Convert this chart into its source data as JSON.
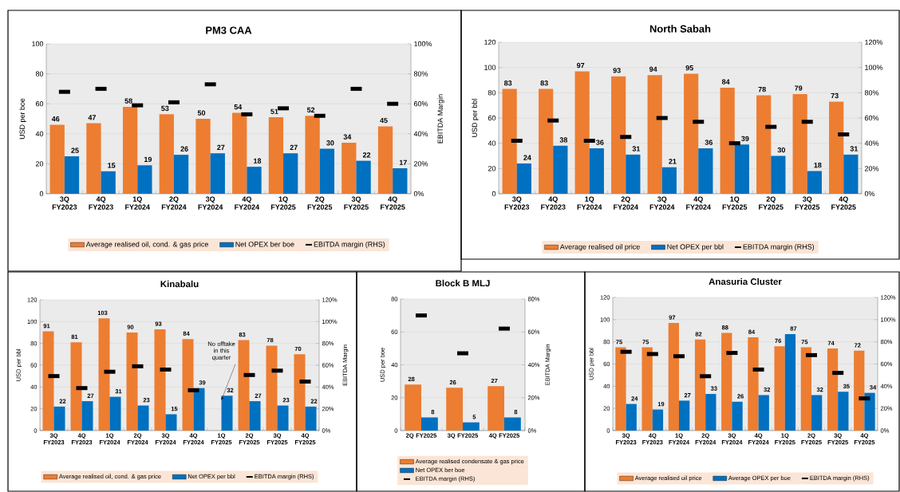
{
  "chart_data": [
    {
      "type": "bar",
      "title": "PM3 CAA",
      "ylabel": "USD per boe",
      "y2label": "EBITDA Margin",
      "categories": [
        "3Q FY2023",
        "4Q FY2023",
        "1Q FY2024",
        "2Q FY2024",
        "3Q FY2024",
        "4Q FY2024",
        "1Q FY2025",
        "2Q FY2025",
        "3Q FY2025",
        "4Q FY2025"
      ],
      "series": [
        {
          "name": "Average realised oil, cond. & gas price",
          "color": "#ed7d31",
          "values": [
            46,
            47,
            58,
            53,
            50,
            54,
            51,
            52,
            34,
            45
          ],
          "value_labels": [
            "46",
            "47",
            "58",
            "53",
            "50",
            "54",
            "51",
            "52",
            "34",
            "45"
          ]
        },
        {
          "name": "Net OPEX ber boe",
          "color": "#0070c0",
          "values": [
            25,
            15,
            19,
            26,
            27,
            18,
            27,
            30,
            22,
            17
          ],
          "value_labels": [
            "25",
            "15",
            "19",
            "26",
            "27",
            "18",
            "27",
            "30",
            "22",
            "17"
          ]
        },
        {
          "name": "EBITDA margin (RHS)",
          "type": "scatter",
          "axis": "y2",
          "color": "#000000",
          "values": [
            68,
            70,
            59,
            61,
            73,
            53,
            57,
            52,
            70,
            60
          ]
        }
      ],
      "ylim": [
        0,
        100
      ],
      "yticks": [
        0,
        20,
        40,
        60,
        80,
        100
      ],
      "y2lim": [
        0,
        100
      ],
      "y2ticks": [
        {
          "value": 0,
          "label": "0%"
        },
        {
          "value": 20,
          "label": "20%"
        },
        {
          "value": 40,
          "label": "40%"
        },
        {
          "value": 60,
          "label": "60%"
        },
        {
          "value": 80,
          "label": "80%"
        },
        {
          "value": 100,
          "label": "100%"
        }
      ],
      "grid": "y",
      "legend": "bottom"
    },
    {
      "type": "bar",
      "title": "North Sabah",
      "ylabel": "USD per bbl",
      "categories": [
        "3Q FY2023",
        "4Q FY2023",
        "1Q FY2024",
        "2Q FY2024",
        "3Q FY2024",
        "4Q FY2024",
        "1Q FY2025",
        "2Q FY2025",
        "3Q FY2025",
        "4Q FY2025"
      ],
      "series": [
        {
          "name": "Average realised oil price",
          "color": "#ed7d31",
          "values": [
            83,
            83,
            97,
            93,
            94,
            95,
            84,
            78,
            79,
            73
          ],
          "value_labels": [
            "83",
            "83",
            "97",
            "93",
            "94",
            "95",
            "84",
            "78",
            "79",
            "73"
          ]
        },
        {
          "name": "Net OPEX per bbl",
          "color": "#0070c0",
          "values": [
            24,
            38,
            36,
            31,
            21,
            36,
            39,
            30,
            18,
            31
          ],
          "value_labels": [
            "24",
            "38",
            "36",
            "31",
            "21",
            "36",
            "39",
            "30",
            "18",
            "31"
          ]
        },
        {
          "name": "EBITDA margin (RHS)",
          "type": "scatter",
          "axis": "y2",
          "color": "#000000",
          "values": [
            42,
            58,
            42,
            45,
            60,
            57,
            40,
            53,
            57,
            47
          ]
        }
      ],
      "ylim": [
        0,
        120
      ],
      "yticks": [
        0,
        20,
        40,
        60,
        80,
        100,
        120
      ],
      "y2lim": [
        0,
        120
      ],
      "y2ticks": [
        {
          "value": 0,
          "label": "0%"
        },
        {
          "value": 20,
          "label": "20%"
        },
        {
          "value": 40,
          "label": "40%"
        },
        {
          "value": 60,
          "label": "60%"
        },
        {
          "value": 80,
          "label": "80%"
        },
        {
          "value": 100,
          "label": "100%"
        },
        {
          "value": 120,
          "label": "120%"
        }
      ],
      "grid": "y",
      "legend": "bottom"
    },
    {
      "type": "bar",
      "title": "Kinabalu",
      "ylabel": "USD per bbl",
      "y2label": "EBITDA Margin",
      "categories": [
        "3Q FY2023",
        "4Q FY2023",
        "1Q FY2024",
        "2Q FY2024",
        "3Q FY2024",
        "4Q FY2024",
        "1Q FY2025",
        "2Q FY2025",
        "3Q FY2025",
        "4Q FY2025"
      ],
      "series": [
        {
          "name": "Average realised oil, cond. & gas price",
          "color": "#ed7d31",
          "values": [
            91,
            81,
            103,
            90,
            93,
            84,
            null,
            83,
            78,
            70
          ],
          "value_labels": [
            "91",
            "81",
            "103",
            "90",
            "93",
            "84",
            null,
            "83",
            "78",
            "70"
          ]
        },
        {
          "name": "Net OPEX per bbl",
          "color": "#0070c0",
          "values": [
            22,
            27,
            31,
            23,
            15,
            39,
            32,
            27,
            23,
            22
          ],
          "value_labels": [
            "22",
            "27",
            "31",
            "23",
            "15",
            "39",
            "32",
            "27",
            "23",
            "22"
          ]
        },
        {
          "name": "EBITDA margin (RHS)",
          "type": "scatter",
          "axis": "y2",
          "color": "#000000",
          "values": [
            50,
            39,
            54,
            59,
            56,
            37,
            null,
            51,
            55,
            45
          ]
        }
      ],
      "ylim": [
        0,
        120
      ],
      "yticks": [
        0,
        20,
        40,
        60,
        80,
        100,
        120
      ],
      "y2lim": [
        0,
        120
      ],
      "y2ticks": [
        {
          "value": 0,
          "label": "0%"
        },
        {
          "value": 20,
          "label": "20%"
        },
        {
          "value": 40,
          "label": "40%"
        },
        {
          "value": 60,
          "label": "60%"
        },
        {
          "value": 80,
          "label": "80%"
        },
        {
          "value": 100,
          "label": "100%"
        },
        {
          "value": 120,
          "label": "120%"
        }
      ],
      "annotations": [
        {
          "text": "No offtake in this quarter",
          "x": "1Q FY2025",
          "y": 28
        }
      ],
      "grid": "y",
      "legend": "bottom"
    },
    {
      "type": "bar",
      "title": "Block B MLJ",
      "ylabel": "USD per boe",
      "y2label": "EBITDA Margin",
      "categories": [
        "2Q FY2025",
        "3Q FY2025",
        "4Q FY2025"
      ],
      "series": [
        {
          "name": "Average realised condensate & gas price",
          "color": "#ed7d31",
          "values": [
            28,
            26,
            27
          ],
          "value_labels": [
            "28",
            "26",
            "27"
          ]
        },
        {
          "name": "Net OPEX ber boe",
          "color": "#0070c0",
          "values": [
            8,
            5,
            8
          ],
          "value_labels": [
            "8",
            "5",
            "8"
          ]
        },
        {
          "name": "EBITDA margin (RHS)",
          "type": "scatter",
          "axis": "y2",
          "color": "#000000",
          "values": [
            70,
            47,
            62
          ]
        }
      ],
      "ylim": [
        0,
        80
      ],
      "yticks": [
        0,
        20,
        40,
        60,
        80
      ],
      "y2lim": [
        0,
        80
      ],
      "y2ticks": [
        {
          "value": 0,
          "label": "0%"
        },
        {
          "value": 20,
          "label": "20%"
        },
        {
          "value": 40,
          "label": "40%"
        },
        {
          "value": 60,
          "label": "60%"
        },
        {
          "value": 80,
          "label": "80%"
        }
      ],
      "grid": "y",
      "legend": "bottom"
    },
    {
      "type": "bar",
      "title": "Anasuria Cluster",
      "ylabel": "USD per bbl",
      "categories": [
        "3Q FY2023",
        "4Q FY2023",
        "1Q FY2024",
        "2Q FY2024",
        "3Q FY2024",
        "4Q FY2024",
        "1Q FY2025",
        "2Q FY2025",
        "3Q FY2025",
        "4Q FY2025"
      ],
      "series": [
        {
          "name": "Average realised oil price",
          "color": "#ed7d31",
          "values": [
            75,
            75,
            97,
            82,
            88,
            84,
            76,
            75,
            74,
            72
          ],
          "value_labels": [
            "75",
            "75",
            "97",
            "82",
            "88",
            "84",
            "76",
            "75",
            "74",
            "72"
          ]
        },
        {
          "name": "Average OPEX per boe",
          "color": "#0070c0",
          "values": [
            24,
            19,
            27,
            33,
            26,
            32,
            87,
            32,
            35,
            34
          ],
          "value_labels": [
            "24",
            "19",
            "27",
            "33",
            "26",
            "32",
            "87",
            "32",
            "35",
            "34"
          ]
        },
        {
          "name": "EBITDA margin (RHS)",
          "type": "scatter",
          "axis": "y2",
          "color": "#000000",
          "values": [
            71,
            69,
            67,
            49,
            70,
            55,
            null,
            68,
            52,
            29
          ]
        }
      ],
      "ylim": [
        0,
        120
      ],
      "yticks": [
        0,
        20,
        40,
        60,
        80,
        100,
        120
      ],
      "y2lim": [
        0,
        120
      ],
      "y2ticks": [
        {
          "value": 0,
          "label": "0%"
        },
        {
          "value": 20,
          "label": "20%"
        },
        {
          "value": 40,
          "label": "40%"
        },
        {
          "value": 60,
          "label": "60%"
        },
        {
          "value": 80,
          "label": "80%"
        },
        {
          "value": 100,
          "label": "100%"
        },
        {
          "value": 120,
          "label": "120%"
        }
      ],
      "grid": "y",
      "legend": "bottom"
    }
  ]
}
